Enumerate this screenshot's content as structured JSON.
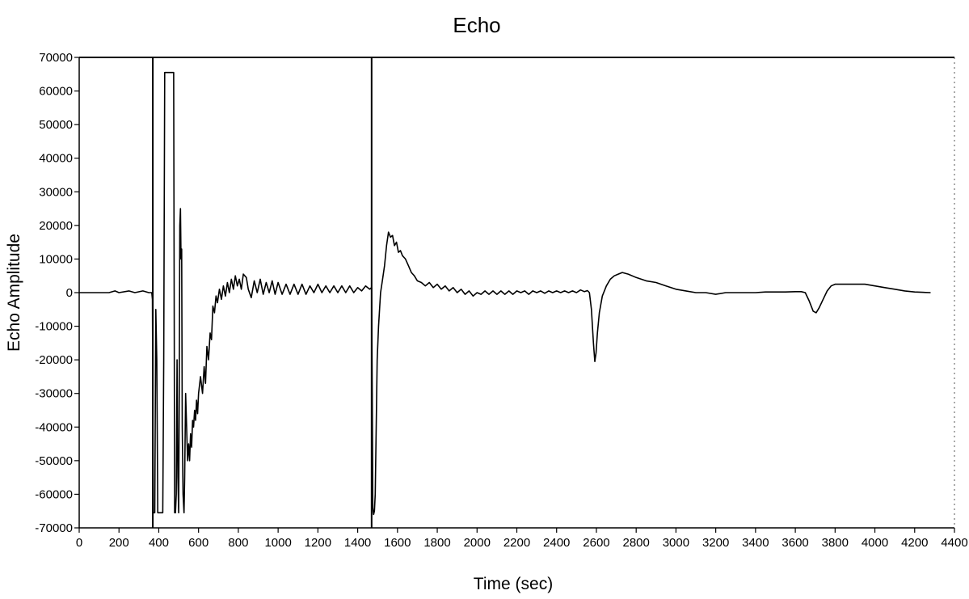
{
  "chart_data": {
    "type": "line",
    "title": "Echo",
    "xlabel": "Time (sec)",
    "ylabel": "Echo Amplitude",
    "xlim": [
      0,
      4400
    ],
    "ylim": [
      -70000,
      70000
    ],
    "x_ticks": [
      "0",
      "200",
      "400",
      "600",
      "800",
      "1000",
      "1200",
      "1400",
      "1600",
      "1800",
      "2000",
      "2200",
      "2400",
      "2600",
      "2800",
      "3000",
      "3200",
      "3400",
      "3600",
      "3800",
      "4000",
      "4200",
      "4400"
    ],
    "y_ticks": [
      "70000",
      "60000",
      "50000",
      "40000",
      "30000",
      "20000",
      "10000",
      "0",
      "-10000",
      "-20000",
      "-30000",
      "-40000",
      "-50000",
      "-60000",
      "-70000"
    ],
    "grid": false,
    "legend": "none",
    "vertical_markers": [
      370,
      1470
    ],
    "series": [
      {
        "color": "#000000",
        "points": [
          [
            0,
            0
          ],
          [
            150,
            0
          ],
          [
            180,
            500
          ],
          [
            200,
            0
          ],
          [
            250,
            500
          ],
          [
            280,
            0
          ],
          [
            320,
            500
          ],
          [
            350,
            0
          ],
          [
            365,
            0
          ],
          [
            368,
            -2000
          ],
          [
            372,
            -65500
          ],
          [
            380,
            -65500
          ],
          [
            385,
            -5000
          ],
          [
            390,
            -20000
          ],
          [
            395,
            -65500
          ],
          [
            410,
            -65500
          ],
          [
            420,
            -65500
          ],
          [
            425,
            -20000
          ],
          [
            430,
            65500
          ],
          [
            470,
            65500
          ],
          [
            475,
            65500
          ],
          [
            480,
            -65500
          ],
          [
            484,
            -65500
          ],
          [
            488,
            -60000
          ],
          [
            492,
            -20000
          ],
          [
            496,
            -55000
          ],
          [
            500,
            -65500
          ],
          [
            503,
            -30000
          ],
          [
            506,
            20000
          ],
          [
            509,
            25000
          ],
          [
            512,
            10000
          ],
          [
            515,
            13000
          ],
          [
            518,
            -40000
          ],
          [
            522,
            -60000
          ],
          [
            527,
            -65500
          ],
          [
            530,
            -55000
          ],
          [
            535,
            -30000
          ],
          [
            540,
            -40000
          ],
          [
            545,
            -50000
          ],
          [
            550,
            -45000
          ],
          [
            555,
            -50000
          ],
          [
            560,
            -42000
          ],
          [
            565,
            -46000
          ],
          [
            570,
            -38000
          ],
          [
            575,
            -40000
          ],
          [
            580,
            -35000
          ],
          [
            585,
            -38000
          ],
          [
            590,
            -32000
          ],
          [
            595,
            -36000
          ],
          [
            600,
            -30000
          ],
          [
            610,
            -25000
          ],
          [
            620,
            -30000
          ],
          [
            628,
            -22000
          ],
          [
            635,
            -27000
          ],
          [
            642,
            -16000
          ],
          [
            650,
            -20000
          ],
          [
            658,
            -12000
          ],
          [
            665,
            -14000
          ],
          [
            672,
            -4000
          ],
          [
            680,
            -6000
          ],
          [
            688,
            -1000
          ],
          [
            695,
            -3000
          ],
          [
            705,
            1000
          ],
          [
            715,
            -2000
          ],
          [
            725,
            2000
          ],
          [
            735,
            -1000
          ],
          [
            745,
            3000
          ],
          [
            755,
            0
          ],
          [
            765,
            4000
          ],
          [
            775,
            1000
          ],
          [
            785,
            5000
          ],
          [
            795,
            2000
          ],
          [
            805,
            4000
          ],
          [
            815,
            1000
          ],
          [
            825,
            5500
          ],
          [
            840,
            4500
          ],
          [
            850,
            1000
          ],
          [
            865,
            -1500
          ],
          [
            880,
            3500
          ],
          [
            895,
            0
          ],
          [
            910,
            4000
          ],
          [
            925,
            -500
          ],
          [
            940,
            3000
          ],
          [
            955,
            0
          ],
          [
            970,
            3500
          ],
          [
            985,
            -500
          ],
          [
            1000,
            3000
          ],
          [
            1020,
            -500
          ],
          [
            1040,
            2500
          ],
          [
            1060,
            -500
          ],
          [
            1080,
            2500
          ],
          [
            1100,
            -500
          ],
          [
            1120,
            2500
          ],
          [
            1140,
            -500
          ],
          [
            1160,
            2000
          ],
          [
            1180,
            0
          ],
          [
            1200,
            2500
          ],
          [
            1220,
            0
          ],
          [
            1240,
            2000
          ],
          [
            1260,
            0
          ],
          [
            1280,
            2000
          ],
          [
            1300,
            0
          ],
          [
            1320,
            2000
          ],
          [
            1340,
            0
          ],
          [
            1360,
            2000
          ],
          [
            1380,
            0
          ],
          [
            1400,
            1500
          ],
          [
            1420,
            500
          ],
          [
            1440,
            2000
          ],
          [
            1460,
            1000
          ],
          [
            1470,
            1500
          ],
          [
            1473,
            -30000
          ],
          [
            1476,
            -64000
          ],
          [
            1480,
            -66000
          ],
          [
            1484,
            -65000
          ],
          [
            1488,
            -60000
          ],
          [
            1493,
            -40000
          ],
          [
            1498,
            -20000
          ],
          [
            1505,
            -10000
          ],
          [
            1515,
            0
          ],
          [
            1525,
            4000
          ],
          [
            1535,
            8000
          ],
          [
            1545,
            14000
          ],
          [
            1555,
            18000
          ],
          [
            1565,
            16500
          ],
          [
            1575,
            17000
          ],
          [
            1585,
            14000
          ],
          [
            1595,
            15000
          ],
          [
            1605,
            12000
          ],
          [
            1615,
            12500
          ],
          [
            1625,
            11000
          ],
          [
            1640,
            10000
          ],
          [
            1655,
            8000
          ],
          [
            1670,
            6000
          ],
          [
            1685,
            5000
          ],
          [
            1700,
            3500
          ],
          [
            1720,
            3000
          ],
          [
            1740,
            2000
          ],
          [
            1760,
            3000
          ],
          [
            1780,
            1500
          ],
          [
            1800,
            2500
          ],
          [
            1820,
            1000
          ],
          [
            1840,
            2000
          ],
          [
            1860,
            500
          ],
          [
            1880,
            1500
          ],
          [
            1900,
            0
          ],
          [
            1920,
            1000
          ],
          [
            1940,
            -500
          ],
          [
            1960,
            500
          ],
          [
            1980,
            -1000
          ],
          [
            2000,
            0
          ],
          [
            2020,
            -500
          ],
          [
            2040,
            500
          ],
          [
            2060,
            -500
          ],
          [
            2080,
            500
          ],
          [
            2100,
            -500
          ],
          [
            2120,
            500
          ],
          [
            2140,
            -500
          ],
          [
            2160,
            500
          ],
          [
            2180,
            -500
          ],
          [
            2200,
            500
          ],
          [
            2220,
            0
          ],
          [
            2240,
            500
          ],
          [
            2260,
            -500
          ],
          [
            2280,
            500
          ],
          [
            2300,
            0
          ],
          [
            2320,
            500
          ],
          [
            2340,
            -200
          ],
          [
            2360,
            500
          ],
          [
            2380,
            0
          ],
          [
            2400,
            500
          ],
          [
            2420,
            0
          ],
          [
            2440,
            500
          ],
          [
            2460,
            0
          ],
          [
            2480,
            500
          ],
          [
            2500,
            0
          ],
          [
            2520,
            800
          ],
          [
            2540,
            300
          ],
          [
            2555,
            600
          ],
          [
            2565,
            0
          ],
          [
            2575,
            -5000
          ],
          [
            2585,
            -15000
          ],
          [
            2592,
            -20500
          ],
          [
            2598,
            -18000
          ],
          [
            2605,
            -12000
          ],
          [
            2615,
            -6000
          ],
          [
            2630,
            -1000
          ],
          [
            2650,
            2000
          ],
          [
            2670,
            4000
          ],
          [
            2690,
            5000
          ],
          [
            2710,
            5500
          ],
          [
            2730,
            6000
          ],
          [
            2760,
            5500
          ],
          [
            2800,
            4500
          ],
          [
            2850,
            3500
          ],
          [
            2900,
            3000
          ],
          [
            2950,
            2000
          ],
          [
            3000,
            1000
          ],
          [
            3050,
            500
          ],
          [
            3100,
            0
          ],
          [
            3150,
            0
          ],
          [
            3200,
            -500
          ],
          [
            3250,
            0
          ],
          [
            3300,
            0
          ],
          [
            3350,
            0
          ],
          [
            3400,
            0
          ],
          [
            3450,
            200
          ],
          [
            3500,
            200
          ],
          [
            3550,
            200
          ],
          [
            3600,
            300
          ],
          [
            3630,
            300
          ],
          [
            3650,
            0
          ],
          [
            3670,
            -2500
          ],
          [
            3690,
            -5500
          ],
          [
            3705,
            -6000
          ],
          [
            3720,
            -4500
          ],
          [
            3740,
            -2000
          ],
          [
            3760,
            500
          ],
          [
            3780,
            2000
          ],
          [
            3800,
            2500
          ],
          [
            3850,
            2500
          ],
          [
            3900,
            2500
          ],
          [
            3950,
            2500
          ],
          [
            4000,
            2000
          ],
          [
            4050,
            1500
          ],
          [
            4100,
            1000
          ],
          [
            4150,
            500
          ],
          [
            4200,
            200
          ],
          [
            4280,
            0
          ]
        ]
      }
    ]
  }
}
